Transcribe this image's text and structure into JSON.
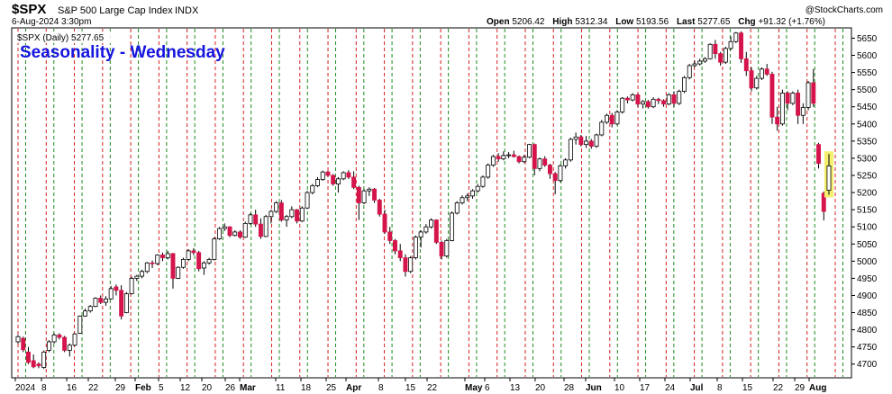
{
  "header": {
    "symbol": "$SPX",
    "name": "S&P 500 Large Cap Index",
    "exchange": "INDX",
    "datetime": "6-Aug-2024 3:30pm",
    "watermark": "@StockCharts.com",
    "open_label": "Open",
    "open": "5206.42",
    "high_label": "High",
    "high": "5312.34",
    "low_label": "Low",
    "low": "5193.56",
    "last_label": "Last",
    "last": "5277.65",
    "chg_label": "Chg",
    "chg": "+91.32 (+1.76%)",
    "legend": "$SPX (Daily) 5277.65"
  },
  "colors": {
    "up": "#ffffff",
    "down": "#d4144a",
    "outline": "#000000",
    "highlight": "#f5ef70",
    "wed_line": "#d42020",
    "fri_line": "#1e8c1e",
    "title": "#1515e0"
  },
  "chart_data": {
    "type": "candlestick",
    "title": "Seasonality - Wednesday",
    "ylim": [
      4660,
      5680
    ],
    "y_ticks": [
      4700,
      4750,
      4800,
      4850,
      4900,
      4950,
      5000,
      5050,
      5100,
      5150,
      5200,
      5250,
      5300,
      5350,
      5400,
      5450,
      5500,
      5550,
      5600,
      5650
    ],
    "x_ticks": [
      "2024",
      "8",
      "16",
      "22",
      "29",
      "Feb",
      "5",
      "12",
      "20",
      "26",
      "Mar",
      "11",
      "18",
      "25",
      "Apr",
      "8",
      "15",
      "22",
      "May",
      "6",
      "13",
      "20",
      "28",
      "Jun",
      "10",
      "17",
      "24",
      "Jul",
      "8",
      "15",
      "22",
      "29",
      "Aug"
    ],
    "grid": "dashed vertical lines: red = Wednesday, green = Friday",
    "candles": [
      {
        "o": 4765,
        "h": 4785,
        "l": 4760,
        "c": 4780
      },
      {
        "o": 4775,
        "h": 4780,
        "l": 4735,
        "c": 4742
      },
      {
        "o": 4735,
        "h": 4750,
        "l": 4700,
        "c": 4705
      },
      {
        "o": 4710,
        "h": 4728,
        "l": 4688,
        "c": 4692
      },
      {
        "o": 4700,
        "h": 4705,
        "l": 4688,
        "c": 4695
      },
      {
        "o": 4690,
        "h": 4740,
        "l": 4686,
        "c": 4735
      },
      {
        "o": 4740,
        "h": 4770,
        "l": 4735,
        "c": 4765
      },
      {
        "o": 4765,
        "h": 4790,
        "l": 4760,
        "c": 4785
      },
      {
        "o": 4785,
        "h": 4790,
        "l": 4772,
        "c": 4778
      },
      {
        "o": 4778,
        "h": 4782,
        "l": 4735,
        "c": 4740
      },
      {
        "o": 4740,
        "h": 4760,
        "l": 4722,
        "c": 4755
      },
      {
        "o": 4755,
        "h": 4790,
        "l": 4752,
        "c": 4788
      },
      {
        "o": 4790,
        "h": 4842,
        "l": 4788,
        "c": 4840
      },
      {
        "o": 4840,
        "h": 4862,
        "l": 4838,
        "c": 4855
      },
      {
        "o": 4855,
        "h": 4872,
        "l": 4850,
        "c": 4868
      },
      {
        "o": 4868,
        "h": 4895,
        "l": 4866,
        "c": 4892
      },
      {
        "o": 4892,
        "h": 4900,
        "l": 4875,
        "c": 4880
      },
      {
        "o": 4880,
        "h": 4898,
        "l": 4870,
        "c": 4890
      },
      {
        "o": 4890,
        "h": 4928,
        "l": 4888,
        "c": 4920
      },
      {
        "o": 4925,
        "h": 4932,
        "l": 4900,
        "c": 4915
      },
      {
        "o": 4915,
        "h": 4930,
        "l": 4830,
        "c": 4840
      },
      {
        "o": 4850,
        "h": 4910,
        "l": 4848,
        "c": 4905
      },
      {
        "o": 4905,
        "h": 4955,
        "l": 4903,
        "c": 4950
      },
      {
        "o": 4950,
        "h": 4960,
        "l": 4942,
        "c": 4956
      },
      {
        "o": 4956,
        "h": 4975,
        "l": 4950,
        "c": 4970
      },
      {
        "o": 4970,
        "h": 4998,
        "l": 4965,
        "c": 4995
      },
      {
        "o": 4995,
        "h": 5002,
        "l": 4980,
        "c": 4993
      },
      {
        "o": 4993,
        "h": 5020,
        "l": 4988,
        "c": 5018
      },
      {
        "o": 5018,
        "h": 5025,
        "l": 5000,
        "c": 5010
      },
      {
        "o": 5010,
        "h": 5030,
        "l": 5005,
        "c": 5022
      },
      {
        "o": 5022,
        "h": 5024,
        "l": 4920,
        "c": 4950
      },
      {
        "o": 4950,
        "h": 4985,
        "l": 4948,
        "c": 4982
      },
      {
        "o": 4982,
        "h": 5010,
        "l": 4978,
        "c": 5005
      },
      {
        "o": 5005,
        "h": 5035,
        "l": 5000,
        "c": 5030
      },
      {
        "o": 5030,
        "h": 5038,
        "l": 5018,
        "c": 5025
      },
      {
        "o": 5025,
        "h": 5030,
        "l": 4970,
        "c": 4978
      },
      {
        "o": 4980,
        "h": 5000,
        "l": 4960,
        "c": 4995
      },
      {
        "o": 4995,
        "h": 5010,
        "l": 4990,
        "c": 5005
      },
      {
        "o": 5005,
        "h": 5070,
        "l": 5002,
        "c": 5065
      },
      {
        "o": 5065,
        "h": 5100,
        "l": 5062,
        "c": 5095
      },
      {
        "o": 5095,
        "h": 5110,
        "l": 5088,
        "c": 5100
      },
      {
        "o": 5100,
        "h": 5102,
        "l": 5070,
        "c": 5075
      },
      {
        "o": 5075,
        "h": 5090,
        "l": 5072,
        "c": 5085
      },
      {
        "o": 5085,
        "h": 5090,
        "l": 5065,
        "c": 5070
      },
      {
        "o": 5070,
        "h": 5115,
        "l": 5068,
        "c": 5110
      },
      {
        "o": 5110,
        "h": 5140,
        "l": 5106,
        "c": 5135
      },
      {
        "o": 5135,
        "h": 5150,
        "l": 5100,
        "c": 5108
      },
      {
        "o": 5108,
        "h": 5125,
        "l": 5065,
        "c": 5072
      },
      {
        "o": 5072,
        "h": 5135,
        "l": 5070,
        "c": 5130
      },
      {
        "o": 5130,
        "h": 5150,
        "l": 5110,
        "c": 5145
      },
      {
        "o": 5145,
        "h": 5175,
        "l": 5140,
        "c": 5170
      },
      {
        "o": 5170,
        "h": 5178,
        "l": 5115,
        "c": 5120
      },
      {
        "o": 5120,
        "h": 5135,
        "l": 5100,
        "c": 5130
      },
      {
        "o": 5130,
        "h": 5160,
        "l": 5125,
        "c": 5150
      },
      {
        "o": 5150,
        "h": 5152,
        "l": 5110,
        "c": 5117
      },
      {
        "o": 5117,
        "h": 5160,
        "l": 5114,
        "c": 5155
      },
      {
        "o": 5155,
        "h": 5205,
        "l": 5152,
        "c": 5200
      },
      {
        "o": 5200,
        "h": 5225,
        "l": 5195,
        "c": 5220
      },
      {
        "o": 5220,
        "h": 5245,
        "l": 5216,
        "c": 5238
      },
      {
        "o": 5238,
        "h": 5264,
        "l": 5234,
        "c": 5260
      },
      {
        "o": 5260,
        "h": 5263,
        "l": 5246,
        "c": 5250
      },
      {
        "o": 5250,
        "h": 5254,
        "l": 5220,
        "c": 5225
      },
      {
        "o": 5225,
        "h": 5245,
        "l": 5200,
        "c": 5240
      },
      {
        "o": 5240,
        "h": 5262,
        "l": 5236,
        "c": 5258
      },
      {
        "o": 5258,
        "h": 5265,
        "l": 5240,
        "c": 5245
      },
      {
        "o": 5245,
        "h": 5262,
        "l": 5210,
        "c": 5215
      },
      {
        "o": 5215,
        "h": 5220,
        "l": 5120,
        "c": 5170
      },
      {
        "o": 5170,
        "h": 5210,
        "l": 5166,
        "c": 5205
      },
      {
        "o": 5205,
        "h": 5215,
        "l": 5190,
        "c": 5210
      },
      {
        "o": 5210,
        "h": 5213,
        "l": 5170,
        "c": 5178
      },
      {
        "o": 5178,
        "h": 5182,
        "l": 5130,
        "c": 5137
      },
      {
        "o": 5137,
        "h": 5150,
        "l": 5080,
        "c": 5085
      },
      {
        "o": 5085,
        "h": 5100,
        "l": 5050,
        "c": 5060
      },
      {
        "o": 5060,
        "h": 5065,
        "l": 5020,
        "c": 5030
      },
      {
        "o": 5030,
        "h": 5050,
        "l": 5000,
        "c": 5010
      },
      {
        "o": 5010,
        "h": 5020,
        "l": 4955,
        "c": 4970
      },
      {
        "o": 4970,
        "h": 5015,
        "l": 4965,
        "c": 5010
      },
      {
        "o": 5010,
        "h": 5075,
        "l": 5005,
        "c": 5070
      },
      {
        "o": 5070,
        "h": 5090,
        "l": 5040,
        "c": 5085
      },
      {
        "o": 5085,
        "h": 5108,
        "l": 5080,
        "c": 5100
      },
      {
        "o": 5100,
        "h": 5125,
        "l": 5095,
        "c": 5120
      },
      {
        "o": 5120,
        "h": 5122,
        "l": 5050,
        "c": 5055
      },
      {
        "o": 5055,
        "h": 5060,
        "l": 5005,
        "c": 5015
      },
      {
        "o": 5015,
        "h": 5065,
        "l": 5010,
        "c": 5060
      },
      {
        "o": 5060,
        "h": 5145,
        "l": 5058,
        "c": 5140
      },
      {
        "o": 5140,
        "h": 5175,
        "l": 5136,
        "c": 5170
      },
      {
        "o": 5170,
        "h": 5192,
        "l": 5165,
        "c": 5185
      },
      {
        "o": 5185,
        "h": 5198,
        "l": 5175,
        "c": 5190
      },
      {
        "o": 5190,
        "h": 5210,
        "l": 5182,
        "c": 5205
      },
      {
        "o": 5205,
        "h": 5225,
        "l": 5200,
        "c": 5218
      },
      {
        "o": 5218,
        "h": 5250,
        "l": 5214,
        "c": 5245
      },
      {
        "o": 5245,
        "h": 5285,
        "l": 5240,
        "c": 5280
      },
      {
        "o": 5280,
        "h": 5310,
        "l": 5275,
        "c": 5305
      },
      {
        "o": 5305,
        "h": 5315,
        "l": 5290,
        "c": 5298
      },
      {
        "o": 5298,
        "h": 5320,
        "l": 5294,
        "c": 5308
      },
      {
        "o": 5308,
        "h": 5318,
        "l": 5300,
        "c": 5310
      },
      {
        "o": 5310,
        "h": 5322,
        "l": 5302,
        "c": 5305
      },
      {
        "o": 5305,
        "h": 5308,
        "l": 5285,
        "c": 5290
      },
      {
        "o": 5290,
        "h": 5310,
        "l": 5286,
        "c": 5303
      },
      {
        "o": 5303,
        "h": 5342,
        "l": 5300,
        "c": 5340
      },
      {
        "o": 5340,
        "h": 5343,
        "l": 5250,
        "c": 5270
      },
      {
        "o": 5270,
        "h": 5302,
        "l": 5262,
        "c": 5298
      },
      {
        "o": 5298,
        "h": 5306,
        "l": 5275,
        "c": 5280
      },
      {
        "o": 5280,
        "h": 5284,
        "l": 5240,
        "c": 5255
      },
      {
        "o": 5255,
        "h": 5260,
        "l": 5195,
        "c": 5235
      },
      {
        "o": 5235,
        "h": 5282,
        "l": 5230,
        "c": 5278
      },
      {
        "o": 5278,
        "h": 5300,
        "l": 5270,
        "c": 5295
      },
      {
        "o": 5295,
        "h": 5360,
        "l": 5290,
        "c": 5355
      },
      {
        "o": 5355,
        "h": 5375,
        "l": 5340,
        "c": 5362
      },
      {
        "o": 5362,
        "h": 5368,
        "l": 5335,
        "c": 5340
      },
      {
        "o": 5340,
        "h": 5365,
        "l": 5330,
        "c": 5350
      },
      {
        "o": 5350,
        "h": 5356,
        "l": 5328,
        "c": 5335
      },
      {
        "o": 5335,
        "h": 5372,
        "l": 5330,
        "c": 5368
      },
      {
        "o": 5368,
        "h": 5412,
        "l": 5364,
        "c": 5405
      },
      {
        "o": 5405,
        "h": 5430,
        "l": 5400,
        "c": 5425
      },
      {
        "o": 5425,
        "h": 5432,
        "l": 5390,
        "c": 5400
      },
      {
        "o": 5400,
        "h": 5440,
        "l": 5396,
        "c": 5435
      },
      {
        "o": 5435,
        "h": 5478,
        "l": 5430,
        "c": 5475
      },
      {
        "o": 5475,
        "h": 5480,
        "l": 5460,
        "c": 5470
      },
      {
        "o": 5470,
        "h": 5490,
        "l": 5466,
        "c": 5485
      },
      {
        "o": 5485,
        "h": 5488,
        "l": 5450,
        "c": 5458
      },
      {
        "o": 5458,
        "h": 5470,
        "l": 5445,
        "c": 5465
      },
      {
        "o": 5465,
        "h": 5470,
        "l": 5445,
        "c": 5450
      },
      {
        "o": 5450,
        "h": 5478,
        "l": 5446,
        "c": 5472
      },
      {
        "o": 5472,
        "h": 5476,
        "l": 5458,
        "c": 5468
      },
      {
        "o": 5468,
        "h": 5472,
        "l": 5450,
        "c": 5458
      },
      {
        "o": 5458,
        "h": 5490,
        "l": 5454,
        "c": 5485
      },
      {
        "o": 5485,
        "h": 5495,
        "l": 5450,
        "c": 5460
      },
      {
        "o": 5460,
        "h": 5500,
        "l": 5455,
        "c": 5495
      },
      {
        "o": 5495,
        "h": 5540,
        "l": 5490,
        "c": 5535
      },
      {
        "o": 5535,
        "h": 5575,
        "l": 5530,
        "c": 5570
      },
      {
        "o": 5570,
        "h": 5585,
        "l": 5565,
        "c": 5575
      },
      {
        "o": 5575,
        "h": 5590,
        "l": 5570,
        "c": 5583
      },
      {
        "o": 5583,
        "h": 5595,
        "l": 5578,
        "c": 5590
      },
      {
        "o": 5590,
        "h": 5635,
        "l": 5588,
        "c": 5632
      },
      {
        "o": 5632,
        "h": 5645,
        "l": 5590,
        "c": 5605
      },
      {
        "o": 5605,
        "h": 5610,
        "l": 5570,
        "c": 5580
      },
      {
        "o": 5580,
        "h": 5625,
        "l": 5575,
        "c": 5620
      },
      {
        "o": 5620,
        "h": 5655,
        "l": 5615,
        "c": 5640
      },
      {
        "o": 5640,
        "h": 5668,
        "l": 5636,
        "c": 5665
      },
      {
        "o": 5665,
        "h": 5670,
        "l": 5578,
        "c": 5590
      },
      {
        "o": 5590,
        "h": 5610,
        "l": 5540,
        "c": 5555
      },
      {
        "o": 5555,
        "h": 5565,
        "l": 5495,
        "c": 5505
      },
      {
        "o": 5505,
        "h": 5540,
        "l": 5500,
        "c": 5533
      },
      {
        "o": 5533,
        "h": 5565,
        "l": 5528,
        "c": 5560
      },
      {
        "o": 5560,
        "h": 5575,
        "l": 5540,
        "c": 5545
      },
      {
        "o": 5545,
        "h": 5552,
        "l": 5400,
        "c": 5420
      },
      {
        "o": 5420,
        "h": 5450,
        "l": 5380,
        "c": 5400
      },
      {
        "o": 5400,
        "h": 5500,
        "l": 5395,
        "c": 5490
      },
      {
        "o": 5490,
        "h": 5495,
        "l": 5440,
        "c": 5460
      },
      {
        "o": 5460,
        "h": 5495,
        "l": 5455,
        "c": 5490
      },
      {
        "o": 5490,
        "h": 5500,
        "l": 5400,
        "c": 5425
      },
      {
        "o": 5425,
        "h": 5460,
        "l": 5400,
        "c": 5448
      },
      {
        "o": 5448,
        "h": 5525,
        "l": 5440,
        "c": 5520
      },
      {
        "o": 5520,
        "h": 5560,
        "l": 5450,
        "c": 5460
      },
      {
        "o": 5340,
        "h": 5345,
        "l": 5270,
        "c": 5285
      },
      {
        "o": 5198,
        "h": 5203,
        "l": 5119,
        "c": 5145
      },
      {
        "o": 5206.42,
        "h": 5312.34,
        "l": 5193.56,
        "c": 5277.65,
        "highlight": true
      }
    ]
  }
}
